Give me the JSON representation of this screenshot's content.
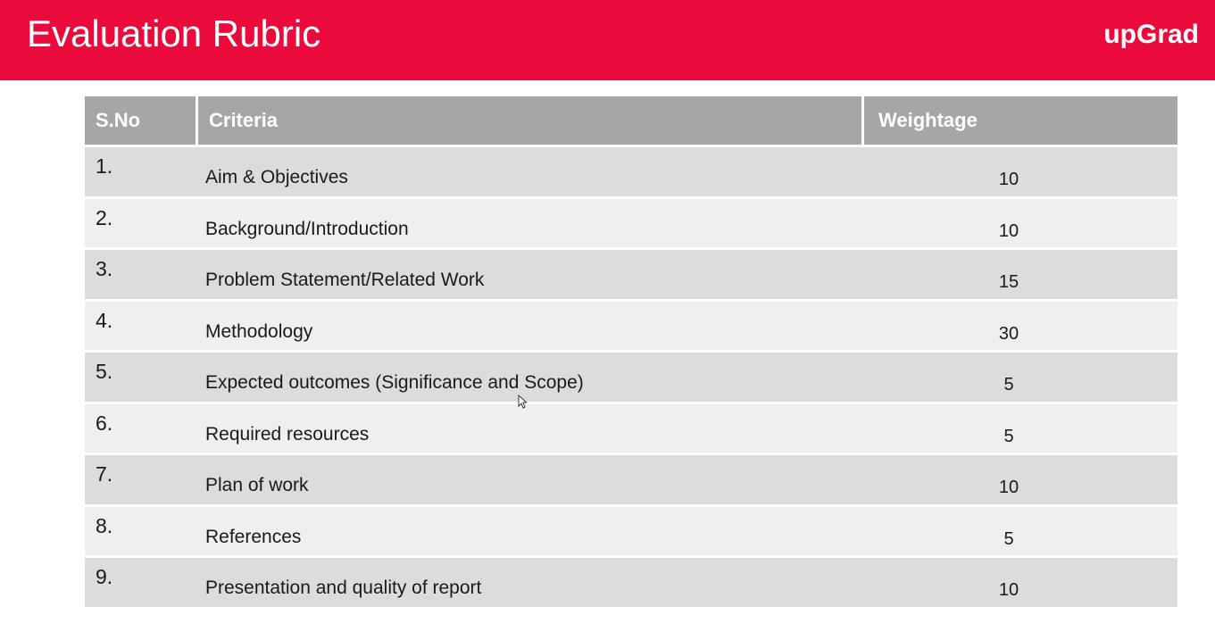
{
  "header": {
    "title": "Evaluation Rubric",
    "brand": "upGrad",
    "background_color": "#ea0a3c"
  },
  "table": {
    "columns": [
      "S.No",
      "Criteria",
      "Weightage"
    ],
    "rows": [
      {
        "sno": "1.",
        "criteria": "Aim & Objectives",
        "weightage": "10"
      },
      {
        "sno": "2.",
        "criteria": "Background/Introduction",
        "weightage": "10"
      },
      {
        "sno": "3.",
        "criteria": "Problem Statement/Related Work",
        "weightage": "15"
      },
      {
        "sno": "4.",
        "criteria": "Methodology",
        "weightage": "30"
      },
      {
        "sno": "5.",
        "criteria": "Expected outcomes (Significance and Scope)",
        "weightage": "5"
      },
      {
        "sno": "6.",
        "criteria": "Required resources",
        "weightage": "5"
      },
      {
        "sno": "7.",
        "criteria": "Plan of work",
        "weightage": "10"
      },
      {
        "sno": "8.",
        "criteria": "References",
        "weightage": "5"
      },
      {
        "sno": "9.",
        "criteria": "Presentation and quality of report",
        "weightage": "10"
      }
    ],
    "header_color": "#a6a6a6",
    "row_color_odd": "#dcdcdc",
    "row_color_even": "#efefef"
  }
}
